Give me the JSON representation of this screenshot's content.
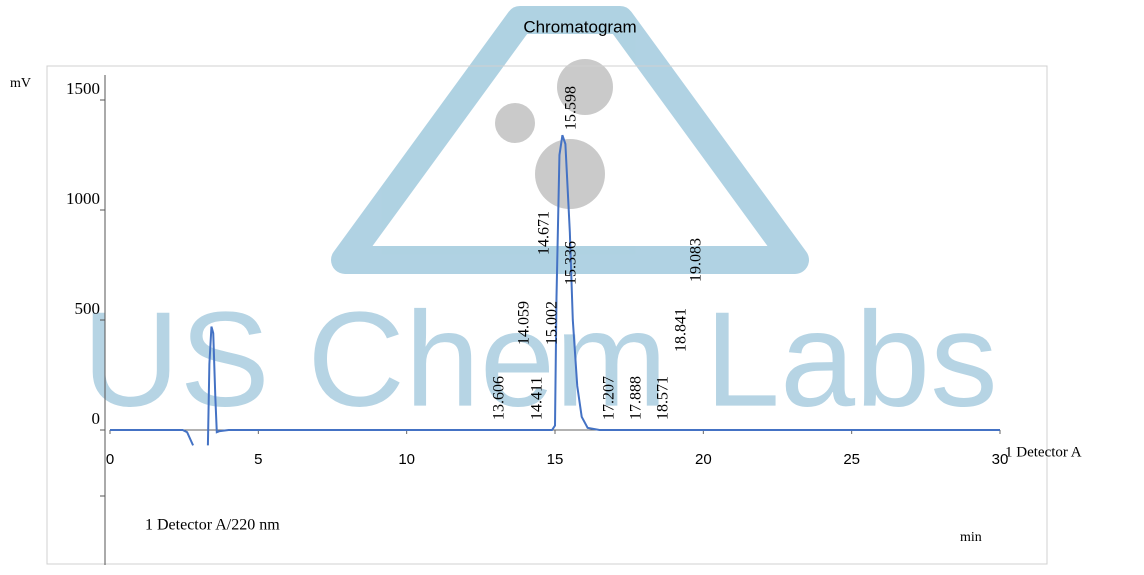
{
  "watermark": "US Chem Labs",
  "chart_data": {
    "type": "line",
    "title": "Chromatogram",
    "y_label": "mV",
    "x_label": "min",
    "trace_label": "1 Detector A",
    "legend_text": "1 Detector A/220 nm",
    "x": [
      0,
      2.45,
      2.6,
      2.8,
      3.0,
      3.3,
      3.35,
      3.42,
      3.48,
      3.55,
      3.6,
      3.7,
      4.0,
      14.9,
      15.0,
      15.05,
      15.15,
      15.25,
      15.35,
      15.5,
      15.6,
      15.75,
      15.9,
      16.1,
      16.5,
      30
    ],
    "series": [
      {
        "name": "1 Detector A",
        "color": "#4472c4",
        "values": [
          0,
          0,
          -10,
          -70,
          null,
          -70,
          300,
          470,
          440,
          150,
          -10,
          -5,
          0,
          0,
          20,
          600,
          1250,
          1340,
          1300,
          900,
          500,
          200,
          60,
          10,
          0,
          0
        ]
      }
    ],
    "annotations": [
      "13.606",
      "14.411",
      "14.059",
      "15.002",
      "14.671",
      "15.336",
      "15.598",
      "17.207",
      "17.888",
      "18.571",
      "18.841",
      "19.083"
    ],
    "xlim": [
      0,
      30
    ],
    "xticks": [
      0,
      5,
      10,
      15,
      20,
      25,
      30
    ],
    "ylim": [
      -600,
      1600
    ],
    "yticks": [
      0,
      500,
      1000,
      1500
    ]
  }
}
